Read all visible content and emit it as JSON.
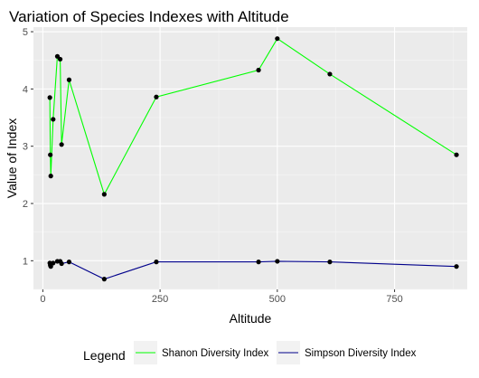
{
  "chart_data": {
    "type": "line",
    "title": "Variation of Species Indexes with Altitude",
    "xlabel": "Altitude",
    "ylabel": "Value of Index",
    "xlim": [
      -20,
      905
    ],
    "ylim": [
      0.5,
      5.08
    ],
    "x_ticks": [
      0,
      250,
      500,
      750
    ],
    "y_ticks": [
      1,
      2,
      3,
      4,
      5
    ],
    "grid": true,
    "legend": {
      "title": "Legend",
      "position": "bottom",
      "entries": [
        "Shanon Diversity Index",
        "Simpson Diversity Index"
      ]
    },
    "series": [
      {
        "name": "Shanon Diversity Index",
        "color": "#00ff00",
        "x": [
          15,
          16,
          17,
          22,
          31,
          37,
          40,
          56,
          131,
          242,
          460,
          500,
          612,
          882
        ],
        "y": [
          3.85,
          2.85,
          2.48,
          3.47,
          4.57,
          4.52,
          3.03,
          4.16,
          2.16,
          3.86,
          4.33,
          4.88,
          4.26,
          2.85
        ]
      },
      {
        "name": "Simpson Diversity Index",
        "color": "#00008b",
        "x": [
          15,
          16,
          17,
          22,
          31,
          37,
          40,
          56,
          131,
          242,
          460,
          500,
          612,
          882
        ],
        "y": [
          0.96,
          0.92,
          0.9,
          0.96,
          0.99,
          0.99,
          0.95,
          0.98,
          0.68,
          0.98,
          0.98,
          0.99,
          0.98,
          0.9
        ]
      }
    ]
  }
}
